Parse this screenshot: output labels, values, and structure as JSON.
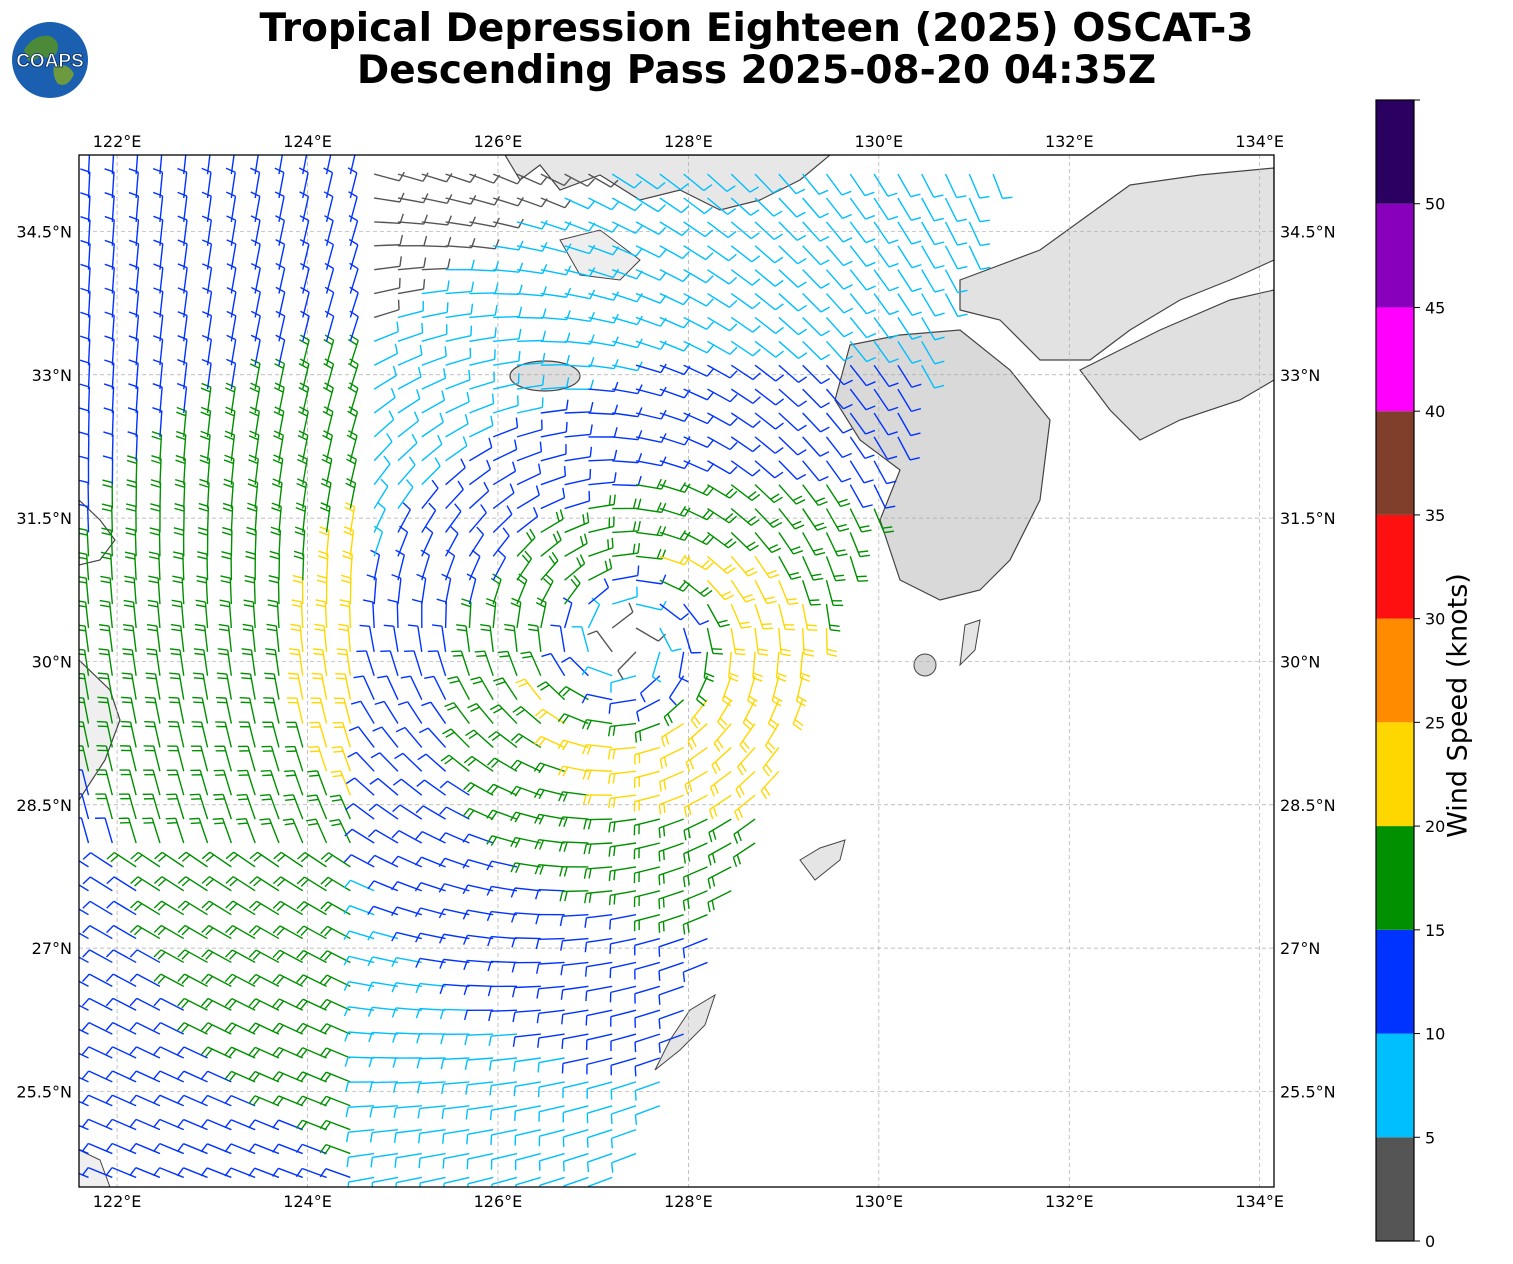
{
  "title": {
    "line1": "Tropical Depression Eighteen (2025) OSCAT-3",
    "line2": "Descending Pass 2025-08-20 04:35Z"
  },
  "logo": {
    "text": "COAPS",
    "icon": "globe-logo-icon"
  },
  "map": {
    "lon_range": [
      121.6,
      134.15
    ],
    "lat_range": [
      24.5,
      35.3
    ],
    "lon_ticks": [
      "122°E",
      "124°E",
      "126°E",
      "128°E",
      "130°E",
      "132°E",
      "134°E"
    ],
    "lon_tick_values": [
      122,
      124,
      126,
      128,
      130,
      132,
      134
    ],
    "lat_ticks": [
      "34.5°N",
      "33°N",
      "31.5°N",
      "30°N",
      "28.5°N",
      "27°N",
      "25.5°N"
    ],
    "lat_tick_values": [
      34.5,
      33,
      31.5,
      30,
      28.5,
      27,
      25.5
    ],
    "grid": true,
    "storm_center": {
      "lon": 127.5,
      "lat": 30.1
    }
  },
  "colorbar": {
    "label": "Wind Speed (knots)",
    "bounds": [
      0,
      5,
      10,
      15,
      20,
      25,
      30,
      35,
      40,
      45,
      50,
      55
    ],
    "tick_labels": [
      "0",
      "5",
      "10",
      "15",
      "20",
      "25",
      "30",
      "35",
      "40",
      "45",
      "50"
    ],
    "colors": [
      "#555555",
      "#00bfff",
      "#0033ff",
      "#009000",
      "#ffd700",
      "#ff8c00",
      "#ff1010",
      "#803f2a",
      "#ff00ff",
      "#8800bb",
      "#2a0060"
    ]
  }
}
